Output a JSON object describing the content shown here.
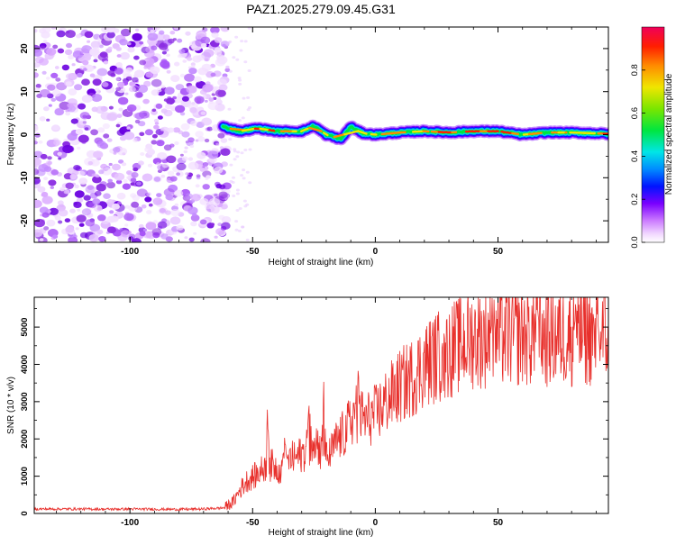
{
  "title": "PAZ1.2025.279.09.45.G31",
  "chart_data": [
    {
      "type": "heatmap",
      "title": "PAZ1.2025.279.09.45.G31",
      "xlabel": "Height of straight line (km)",
      "ylabel": "Frequency (Hz)",
      "xlim": [
        -139,
        95
      ],
      "ylim": [
        -25,
        25
      ],
      "xticks": [
        -100,
        -50,
        0,
        50
      ],
      "yticks": [
        -20,
        -10,
        0,
        10,
        20
      ],
      "noise_region_x": [
        -139,
        -60
      ],
      "ridge": {
        "start_x": -62,
        "end_x": 95,
        "points": [
          {
            "x": -62,
            "y": 1.8
          },
          {
            "x": -55,
            "y": 0.8
          },
          {
            "x": -48,
            "y": 1.5
          },
          {
            "x": -40,
            "y": 0.8
          },
          {
            "x": -30,
            "y": 0.8
          },
          {
            "x": -25,
            "y": 2.0
          },
          {
            "x": -20,
            "y": 0.0
          },
          {
            "x": -14,
            "y": -1.0
          },
          {
            "x": -10,
            "y": 1.8
          },
          {
            "x": -5,
            "y": 0.3
          },
          {
            "x": 0,
            "y": 0.0
          },
          {
            "x": 10,
            "y": 0.5
          },
          {
            "x": 20,
            "y": 0.8
          },
          {
            "x": 30,
            "y": 0.5
          },
          {
            "x": 40,
            "y": 0.8
          },
          {
            "x": 50,
            "y": 0.8
          },
          {
            "x": 60,
            "y": 0.0
          },
          {
            "x": 70,
            "y": 0.5
          },
          {
            "x": 80,
            "y": 0.5
          },
          {
            "x": 95,
            "y": 0.2
          }
        ]
      },
      "colorbar": {
        "label": "Normalized spectral amplitude",
        "range": [
          0,
          1
        ],
        "ticks": [
          "0.0",
          "0.2",
          "0.4",
          "0.6",
          "0.8"
        ],
        "tick_values": [
          0.0,
          0.2,
          0.4,
          0.6,
          0.8
        ]
      }
    },
    {
      "type": "line",
      "xlabel": "Height of straight line (km)",
      "ylabel": "SNR (10 * v/v)",
      "xlim": [
        -139,
        95
      ],
      "ylim": [
        0,
        5800
      ],
      "xticks": [
        -100,
        -50,
        0,
        50
      ],
      "yticks": [
        0,
        1000,
        2000,
        3000,
        4000,
        5000
      ],
      "color": "#e8302c",
      "series": [
        {
          "name": "SNR",
          "x": [
            -139,
            -130,
            -120,
            -110,
            -100,
            -90,
            -80,
            -70,
            -62,
            -58,
            -55,
            -52,
            -48,
            -45,
            -42,
            -38,
            -35,
            -32,
            -28,
            -25,
            -22,
            -19,
            -16,
            -12,
            -8,
            -4,
            0,
            5,
            10,
            15,
            20,
            25,
            30,
            35,
            40,
            50,
            60,
            70,
            80,
            95
          ],
          "y": [
            120,
            120,
            120,
            115,
            120,
            115,
            110,
            120,
            150,
            300,
            650,
            900,
            1050,
            1250,
            1300,
            1150,
            1450,
            1500,
            1700,
            2150,
            1600,
            1500,
            1900,
            2200,
            2750,
            2500,
            2650,
            3050,
            3400,
            3650,
            4000,
            4200,
            4350,
            4550,
            4700,
            4750,
            4800,
            4750,
            4800,
            4800
          ]
        }
      ],
      "spikes": [
        {
          "x": -44,
          "y": 2800
        },
        {
          "x": -37,
          "y": 2100
        },
        {
          "x": -27,
          "y": 3100
        },
        {
          "x": -21,
          "y": 3600
        },
        {
          "x": -7,
          "y": 3900
        },
        {
          "x": 28,
          "y": 4900
        },
        {
          "x": 48,
          "y": 5500
        },
        {
          "x": 66,
          "y": 5750
        },
        {
          "x": 82,
          "y": 5700
        },
        {
          "x": 90,
          "y": 5500
        }
      ]
    }
  ]
}
